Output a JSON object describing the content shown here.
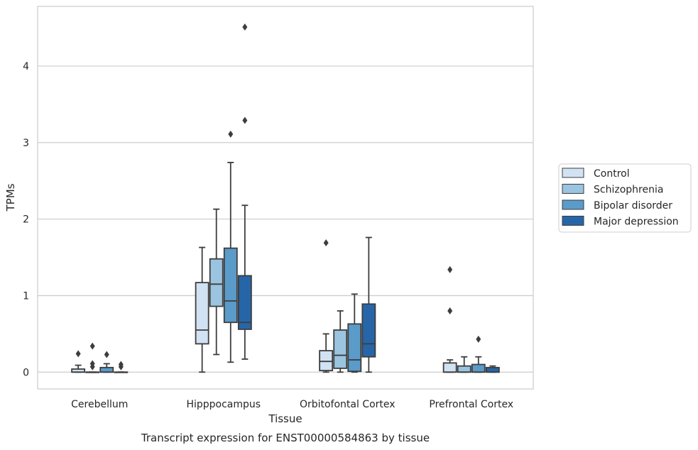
{
  "chart_data": {
    "type": "box",
    "caption": "Transcript expression for ENST00000584863 by tissue",
    "xlabel": "Tissue",
    "ylabel": "TPMs",
    "ylim": [
      -0.22,
      4.78
    ],
    "yticks": [
      0,
      1,
      2,
      3,
      4
    ],
    "grid": "horizontal",
    "legend_position": "right",
    "categories": [
      "Cerebellum",
      "Hipppocampus",
      "Orbitofontal Cortex",
      "Prefrontal Cortex"
    ],
    "series": [
      {
        "name": "Control",
        "color": "#d1e2f2",
        "boxes": [
          {
            "whislo": 0,
            "q1": 0,
            "med": 0,
            "q3": 0.04,
            "whishi": 0.09,
            "fliers": [
              0.24
            ]
          },
          {
            "whislo": 0,
            "q1": 0.37,
            "med": 0.55,
            "q3": 1.17,
            "whishi": 1.63,
            "fliers": []
          },
          {
            "whislo": 0,
            "q1": 0.02,
            "med": 0.14,
            "q3": 0.28,
            "whishi": 0.5,
            "fliers": [
              1.69
            ]
          },
          {
            "whislo": 0,
            "q1": 0,
            "med": 0,
            "q3": 0.12,
            "whishi": 0.16,
            "fliers": [
              0.8,
              1.34
            ]
          }
        ]
      },
      {
        "name": "Schizophrenia",
        "color": "#9ac4e0",
        "boxes": [
          {
            "whislo": 0,
            "q1": 0,
            "med": 0,
            "q3": 0,
            "whishi": 0,
            "fliers": [
              0.07,
              0.11,
              0.34
            ]
          },
          {
            "whislo": 0.23,
            "q1": 0.86,
            "med": 1.15,
            "q3": 1.48,
            "whishi": 2.13,
            "fliers": []
          },
          {
            "whislo": 0,
            "q1": 0.05,
            "med": 0.22,
            "q3": 0.55,
            "whishi": 0.8,
            "fliers": []
          },
          {
            "whislo": 0,
            "q1": 0,
            "med": 0,
            "q3": 0.08,
            "whishi": 0.2,
            "fliers": []
          }
        ]
      },
      {
        "name": "Bipolar disorder",
        "color": "#5a9bc9",
        "boxes": [
          {
            "whislo": 0,
            "q1": 0,
            "med": 0,
            "q3": 0.06,
            "whishi": 0.11,
            "fliers": [
              0.23
            ]
          },
          {
            "whislo": 0.13,
            "q1": 0.65,
            "med": 0.93,
            "q3": 1.62,
            "whishi": 2.74,
            "fliers": [
              3.11
            ]
          },
          {
            "whislo": 0,
            "q1": 0.01,
            "med": 0.16,
            "q3": 0.63,
            "whishi": 1.02,
            "fliers": []
          },
          {
            "whislo": 0,
            "q1": 0,
            "med": 0,
            "q3": 0.1,
            "whishi": 0.2,
            "fliers": [
              0.43
            ]
          }
        ]
      },
      {
        "name": "Major depression",
        "color": "#2666a8",
        "boxes": [
          {
            "whislo": 0,
            "q1": 0,
            "med": 0,
            "q3": 0,
            "whishi": 0,
            "fliers": [
              0.07,
              0.1
            ]
          },
          {
            "whislo": 0.17,
            "q1": 0.56,
            "med": 0.65,
            "q3": 1.26,
            "whishi": 2.18,
            "fliers": [
              3.29,
              4.51
            ]
          },
          {
            "whislo": 0,
            "q1": 0.2,
            "med": 0.37,
            "q3": 0.89,
            "whishi": 1.76,
            "fliers": []
          },
          {
            "whislo": 0,
            "q1": 0,
            "med": 0,
            "q3": 0.06,
            "whishi": 0.08,
            "fliers": []
          }
        ]
      }
    ]
  }
}
